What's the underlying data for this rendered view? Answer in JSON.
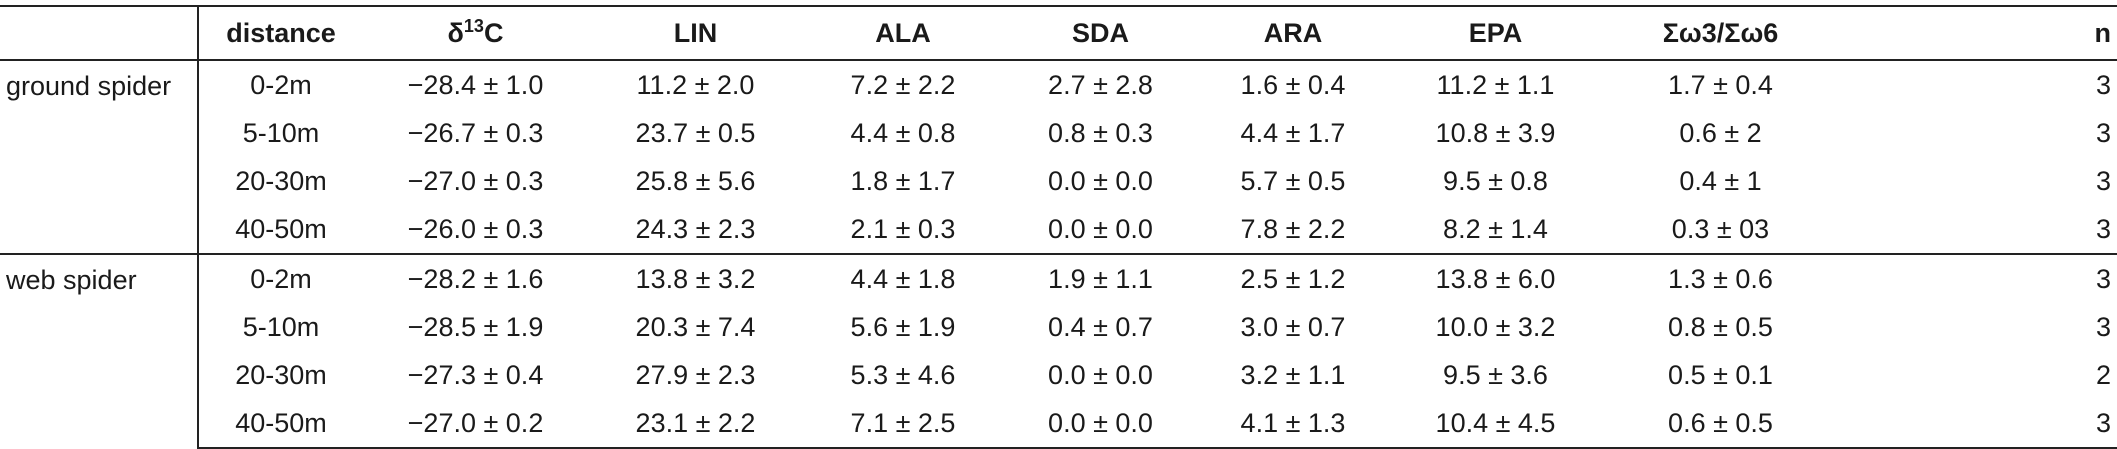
{
  "table": {
    "headers": {
      "group": "",
      "distance": "distance",
      "delta_symbol": "δ",
      "delta_superscript": "13",
      "delta_element": "C",
      "lin": "LIN",
      "ala": "ALA",
      "sda": "SDA",
      "ara": "ARA",
      "epa": "EPA",
      "ratio": "Σω3/Σω6",
      "n": "n"
    },
    "groups": [
      {
        "label": "ground spider",
        "rows": [
          {
            "distance": "0-2m",
            "d13c": "−28.4 ± 1.0",
            "lin": "11.2 ± 2.0",
            "ala": "7.2 ± 2.2",
            "sda": "2.7 ± 2.8",
            "ara": "1.6 ± 0.4",
            "epa": "11.2 ± 1.1",
            "ratio": "1.7 ± 0.4",
            "n": "3"
          },
          {
            "distance": "5-10m",
            "d13c": "−26.7 ± 0.3",
            "lin": "23.7 ± 0.5",
            "ala": "4.4 ± 0.8",
            "sda": "0.8 ± 0.3",
            "ara": "4.4 ± 1.7",
            "epa": "10.8 ± 3.9",
            "ratio": "0.6 ± 2",
            "n": "3"
          },
          {
            "distance": "20-30m",
            "d13c": "−27.0 ± 0.3",
            "lin": "25.8 ± 5.6",
            "ala": "1.8 ± 1.7",
            "sda": "0.0 ± 0.0",
            "ara": "5.7 ± 0.5",
            "epa": "9.5 ± 0.8",
            "ratio": "0.4 ± 1",
            "n": "3"
          },
          {
            "distance": "40-50m",
            "d13c": "−26.0 ± 0.3",
            "lin": "24.3 ± 2.3",
            "ala": "2.1 ± 0.3",
            "sda": "0.0 ± 0.0",
            "ara": "7.8 ± 2.2",
            "epa": "8.2 ± 1.4",
            "ratio": "0.3 ± 03",
            "n": "3"
          }
        ]
      },
      {
        "label": "web spider",
        "rows": [
          {
            "distance": "0-2m",
            "d13c": "−28.2 ± 1.6",
            "lin": "13.8 ± 3.2",
            "ala": "4.4 ± 1.8",
            "sda": "1.9 ± 1.1",
            "ara": "2.5 ± 1.2",
            "epa": "13.8 ± 6.0",
            "ratio": "1.3 ± 0.6",
            "n": "3"
          },
          {
            "distance": "5-10m",
            "d13c": "−28.5 ± 1.9",
            "lin": "20.3 ± 7.4",
            "ala": "5.6 ± 1.9",
            "sda": "0.4 ± 0.7",
            "ara": "3.0 ± 0.7",
            "epa": "10.0 ± 3.2",
            "ratio": "0.8 ± 0.5",
            "n": "3"
          },
          {
            "distance": "20-30m",
            "d13c": "−27.3 ± 0.4",
            "lin": "27.9 ± 2.3",
            "ala": "5.3 ± 4.6",
            "sda": "0.0 ± 0.0",
            "ara": "3.2 ± 1.1",
            "epa": "9.5 ± 3.6",
            "ratio": "0.5 ± 0.1",
            "n": "2"
          },
          {
            "distance": "40-50m",
            "d13c": "−27.0 ± 0.2",
            "lin": "23.1 ± 2.2",
            "ala": "7.1 ± 2.5",
            "sda": "0.0 ± 0.0",
            "ara": "4.1 ± 1.3",
            "epa": "10.4 ± 4.5",
            "ratio": "0.6 ± 0.5",
            "n": "3"
          }
        ]
      }
    ]
  }
}
